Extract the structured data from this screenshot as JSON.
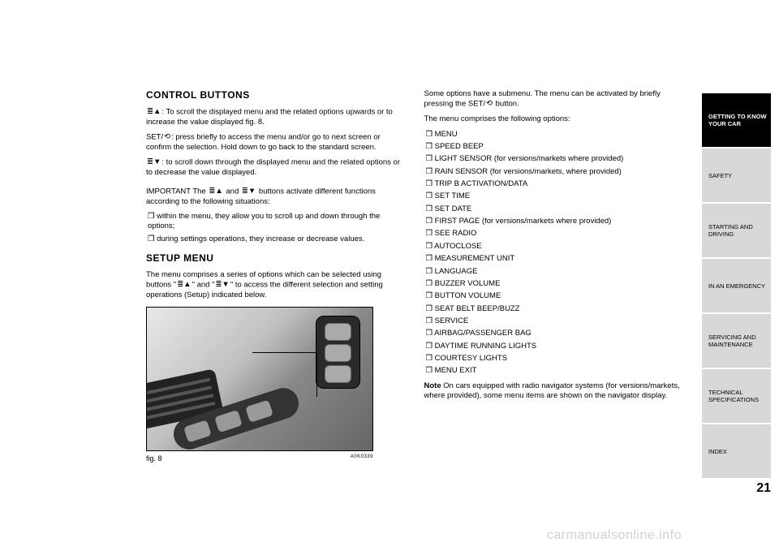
{
  "left": {
    "heading1": "CONTROL BUTTONS",
    "p1a": ": To scroll the displayed menu and the related options upwards or to increase the value displayed fig. 8.",
    "p1b_pre": "SET/",
    "p1b": ": press briefly to access the menu and/or go to next screen or confirm the selection. Hold down to go back to the standard screen.",
    "p1c": ": to scroll down through the displayed menu and the related options or to decrease the value displayed.",
    "p2a": "IMPORTANT The ",
    "p2b": " and ",
    "p2c": " buttons activate different functions according to the following situations:",
    "li1": "❒ within the menu, they allow you to scroll up and down through the options;",
    "li2": "❒ during settings operations, they increase or decrease values.",
    "heading2": "SETUP MENU",
    "p3a": "The menu comprises a series of options which can be selected using buttons \"",
    "p3b": "\" and \"",
    "p3c": "\" to access the different selection and setting operations (Setup) indicated below.",
    "fig_label": "fig. 8",
    "fig_code": "A0K0339"
  },
  "right": {
    "p1a": "Some options have a submenu. The menu can be activated by briefly pressing the SET/",
    "p1b": " button.",
    "p2": "The menu comprises the following options:",
    "items": [
      "❒ MENU",
      "❒ SPEED BEEP",
      "❒ LIGHT SENSOR (for versions/markets where provided)",
      "❒ RAIN SENSOR (for versions/markets, where provided)",
      "❒ TRIP B ACTIVATION/DATA",
      "❒ SET TIME",
      "❒ SET DATE",
      "❒ FIRST PAGE (for versions/markets where provided)",
      "❒ SEE RADIO",
      "❒ AUTOCLOSE",
      "❒ MEASUREMENT UNIT",
      "❒ LANGUAGE",
      "❒ BUZZER VOLUME",
      "❒ BUTTON VOLUME",
      "❒ SEAT BELT BEEP/BUZZ",
      "❒ SERVICE",
      "❒ AIRBAG/PASSENGER BAG",
      "❒ DAYTIME RUNNING LIGHTS",
      "❒ COURTESY LIGHTS",
      "❒ MENU EXIT"
    ],
    "note_label": "Note",
    "note_text": " On cars equipped with radio navigator systems (for versions/markets, where provided), some menu items are shown on the navigator display."
  },
  "sidebar": {
    "tabs": [
      "GETTING TO KNOW YOUR CAR",
      "SAFETY",
      "STARTING AND DRIVING",
      "IN AN EMERGENCY",
      "SERVICING AND MAINTENANCE",
      "TECHNICAL SPECIFICATIONS",
      "INDEX"
    ],
    "page_num": "21"
  },
  "watermark": "carmanualsonline.info",
  "icons": {
    "menu_up": "≣▲",
    "menu_down": "≣▼",
    "set_arrow": "⟲"
  }
}
